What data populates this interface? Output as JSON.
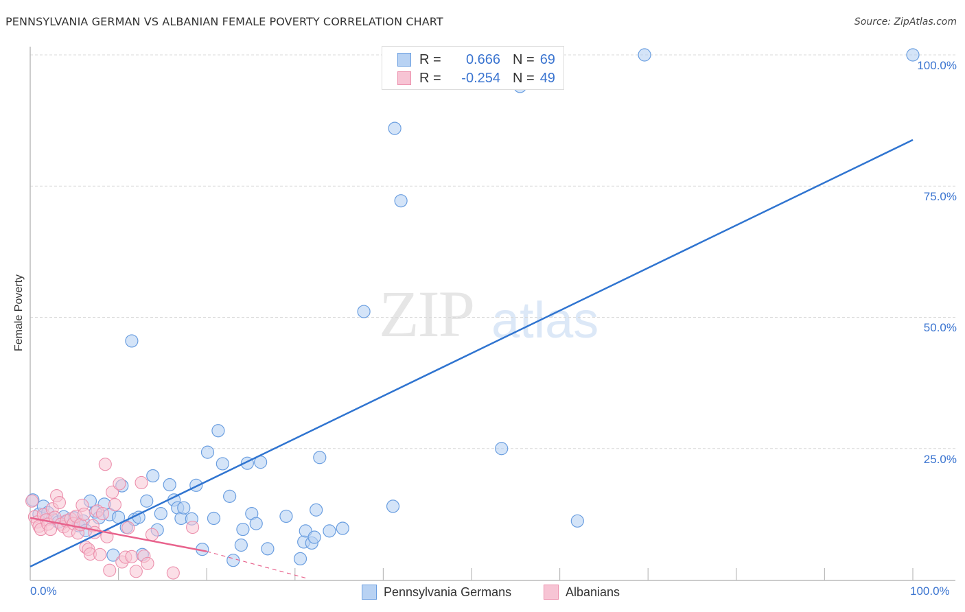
{
  "header": {
    "title": "PENNSYLVANIA GERMAN VS ALBANIAN FEMALE POVERTY CORRELATION CHART",
    "source": "Source: ZipAtlas.com"
  },
  "watermark": {
    "zip": "ZIP",
    "atlas": "atlas"
  },
  "legend": {
    "series": [
      {
        "r_label": "R =",
        "r_value": "0.666",
        "n_label": "N =",
        "n_value": "69"
      },
      {
        "r_label": "R =",
        "r_value": "-0.254",
        "n_label": "N =",
        "n_value": "49"
      }
    ]
  },
  "bottom_legend": {
    "items": [
      {
        "label": "Pennsylvania Germans"
      },
      {
        "label": "Albanians"
      }
    ]
  },
  "axes": {
    "ylabel": "Female Poverty",
    "yticks": [
      "100.0%",
      "75.0%",
      "50.0%",
      "25.0%"
    ],
    "xticks": [
      "0.0%",
      "100.0%"
    ]
  },
  "colors": {
    "blue_fill": "#b8d2f3",
    "blue_stroke": "#6a9ee0",
    "blue_line": "#2f74d0",
    "pink_fill": "#f7c4d4",
    "pink_stroke": "#ec8fac",
    "pink_line": "#e8628c",
    "tick_text": "#3a74d0",
    "grid": "#d9d9d9"
  },
  "chart_data": {
    "type": "scatter",
    "title": "PENNSYLVANIA GERMAN VS ALBANIAN FEMALE POVERTY CORRELATION CHART",
    "xlabel": "",
    "ylabel": "Female Poverty",
    "xlim": [
      0,
      100
    ],
    "ylim": [
      0,
      100
    ],
    "x_tick_labels": [
      "0.0%",
      "100.0%"
    ],
    "y_tick_labels": [
      "25.0%",
      "50.0%",
      "75.0%",
      "100.0%"
    ],
    "grid": "horizontal dashed at 25/50/75/100",
    "legend_position": "top-center inset + bottom",
    "series": [
      {
        "name": "Pennsylvania Germans",
        "R": 0.666,
        "N": 69,
        "trendline": {
          "x": [
            0,
            100
          ],
          "y": [
            2.5,
            83.8
          ]
        },
        "points": [
          [
            0.3,
            15.2
          ],
          [
            1.0,
            12.5
          ],
          [
            1.5,
            14.0
          ],
          [
            2.0,
            12.8
          ],
          [
            2.5,
            11.6
          ],
          [
            3.2,
            11.0
          ],
          [
            3.8,
            12.0
          ],
          [
            4.3,
            11.3
          ],
          [
            5.0,
            11.8
          ],
          [
            5.5,
            10.3
          ],
          [
            6.0,
            11.2
          ],
          [
            6.3,
            9.4
          ],
          [
            6.8,
            15.0
          ],
          [
            7.4,
            12.9
          ],
          [
            7.8,
            11.8
          ],
          [
            8.4,
            14.4
          ],
          [
            9.0,
            12.4
          ],
          [
            9.4,
            4.7
          ],
          [
            10.0,
            11.9
          ],
          [
            10.4,
            17.9
          ],
          [
            10.9,
            10.0
          ],
          [
            11.5,
            45.5
          ],
          [
            11.8,
            11.5
          ],
          [
            12.3,
            11.9
          ],
          [
            12.7,
            4.8
          ],
          [
            13.2,
            15.0
          ],
          [
            13.9,
            19.8
          ],
          [
            14.4,
            9.5
          ],
          [
            14.8,
            12.6
          ],
          [
            15.8,
            18.1
          ],
          [
            16.3,
            15.2
          ],
          [
            16.7,
            13.7
          ],
          [
            17.1,
            11.7
          ],
          [
            17.4,
            13.7
          ],
          [
            18.3,
            11.6
          ],
          [
            18.8,
            18.0
          ],
          [
            19.5,
            5.8
          ],
          [
            20.1,
            24.3
          ],
          [
            20.8,
            11.7
          ],
          [
            21.3,
            28.4
          ],
          [
            21.8,
            22.1
          ],
          [
            22.6,
            15.9
          ],
          [
            23.0,
            3.7
          ],
          [
            23.9,
            6.6
          ],
          [
            24.1,
            9.6
          ],
          [
            24.6,
            22.2
          ],
          [
            25.1,
            12.6
          ],
          [
            25.6,
            10.7
          ],
          [
            26.1,
            22.4
          ],
          [
            26.9,
            5.9
          ],
          [
            29.0,
            12.1
          ],
          [
            30.6,
            4.0
          ],
          [
            31.0,
            7.2
          ],
          [
            31.2,
            9.3
          ],
          [
            31.9,
            7.0
          ],
          [
            32.2,
            8.1
          ],
          [
            32.4,
            13.3
          ],
          [
            32.8,
            23.3
          ],
          [
            33.9,
            9.3
          ],
          [
            35.4,
            9.8
          ],
          [
            37.8,
            51.1
          ],
          [
            41.1,
            14.0
          ],
          [
            41.3,
            86.0
          ],
          [
            42.0,
            72.2
          ],
          [
            53.4,
            25.0
          ],
          [
            55.5,
            94.0
          ],
          [
            62.0,
            11.2
          ],
          [
            69.6,
            100.0
          ],
          [
            100.0,
            100.0
          ]
        ]
      },
      {
        "name": "Albanians",
        "R": -0.254,
        "N": 49,
        "trendline_solid": {
          "x": [
            0,
            20
          ],
          "y": [
            11.8,
            5.4
          ]
        },
        "trendline_dashed": {
          "x": [
            20,
            31.5
          ],
          "y": [
            5.4,
            0.2
          ]
        },
        "points": [
          [
            0.2,
            15.0
          ],
          [
            0.5,
            12.0
          ],
          [
            0.8,
            11.0
          ],
          [
            1.0,
            10.2
          ],
          [
            1.2,
            9.6
          ],
          [
            1.5,
            12.4
          ],
          [
            1.8,
            11.4
          ],
          [
            2.0,
            10.6
          ],
          [
            2.3,
            9.6
          ],
          [
            2.5,
            13.5
          ],
          [
            2.8,
            11.9
          ],
          [
            3.0,
            16.0
          ],
          [
            3.3,
            14.7
          ],
          [
            3.5,
            10.6
          ],
          [
            3.8,
            10.1
          ],
          [
            4.1,
            11.2
          ],
          [
            4.4,
            9.3
          ],
          [
            4.6,
            11.6
          ],
          [
            4.9,
            10.7
          ],
          [
            5.2,
            12.1
          ],
          [
            5.4,
            8.9
          ],
          [
            5.7,
            10.5
          ],
          [
            5.9,
            14.2
          ],
          [
            6.1,
            12.5
          ],
          [
            6.3,
            6.2
          ],
          [
            6.6,
            5.8
          ],
          [
            6.8,
            4.9
          ],
          [
            7.1,
            10.3
          ],
          [
            7.3,
            9.0
          ],
          [
            7.6,
            13.1
          ],
          [
            7.9,
            4.8
          ],
          [
            8.2,
            12.6
          ],
          [
            8.5,
            22.0
          ],
          [
            8.7,
            8.2
          ],
          [
            9.0,
            1.8
          ],
          [
            9.3,
            16.7
          ],
          [
            9.6,
            14.3
          ],
          [
            10.1,
            18.3
          ],
          [
            10.4,
            3.4
          ],
          [
            10.8,
            4.3
          ],
          [
            11.1,
            9.9
          ],
          [
            11.5,
            4.4
          ],
          [
            12.0,
            1.6
          ],
          [
            12.6,
            18.5
          ],
          [
            12.9,
            4.5
          ],
          [
            13.3,
            3.1
          ],
          [
            13.8,
            8.6
          ],
          [
            16.2,
            1.3
          ],
          [
            18.4,
            10.0
          ]
        ]
      }
    ]
  }
}
